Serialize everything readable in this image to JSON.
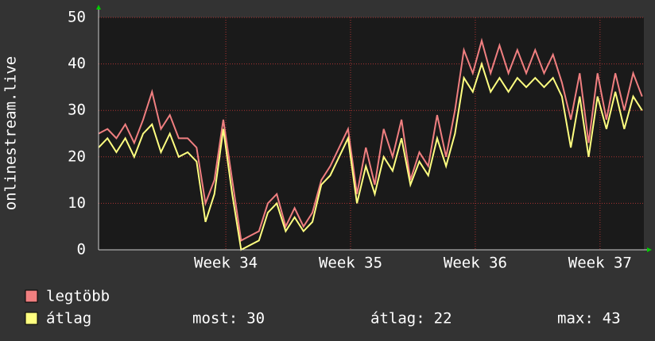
{
  "chart_data": {
    "type": "line",
    "y_label": "onlinestream.live",
    "x": [
      0,
      0.5,
      1,
      1.5,
      2,
      2.5,
      3,
      3.5,
      4,
      4.5,
      5,
      5.5,
      6,
      6.5,
      7,
      7.5,
      8,
      8.5,
      9,
      9.5,
      10,
      10.5,
      11,
      11.5,
      12,
      12.5,
      13,
      13.5,
      14,
      14.5,
      15,
      15.5,
      16,
      16.5,
      17,
      17.5,
      18,
      18.5,
      19,
      19.5,
      20,
      20.5,
      21,
      21.5,
      22,
      22.5,
      23,
      23.5,
      24,
      24.5,
      25,
      25.5,
      26,
      26.5,
      27,
      27.5,
      28,
      28.5,
      29,
      29.5,
      30,
      30.5
    ],
    "series": [
      {
        "name": "legtöbb",
        "color": "#f07f80",
        "values": [
          25,
          26,
          24,
          27,
          23,
          28,
          34,
          26,
          29,
          24,
          24,
          22,
          10,
          15,
          28,
          15,
          2,
          3,
          4,
          10,
          12,
          5,
          9,
          5,
          8,
          15,
          18,
          22,
          26,
          12,
          22,
          14,
          26,
          20,
          28,
          15,
          21,
          18,
          29,
          20,
          30,
          43,
          38,
          45,
          38,
          44,
          38,
          43,
          38,
          43,
          38,
          42,
          36,
          28,
          38,
          23,
          38,
          28,
          38,
          30,
          38,
          33
        ]
      },
      {
        "name": "átlag",
        "color": "#ffff80",
        "values": [
          22,
          24,
          21,
          24,
          20,
          25,
          27,
          21,
          25,
          20,
          21,
          19,
          6,
          12,
          26,
          12,
          0,
          1,
          2,
          8,
          10,
          4,
          7,
          4,
          6,
          14,
          16,
          20,
          24,
          10,
          18,
          12,
          20,
          17,
          24,
          14,
          19,
          16,
          24,
          18,
          25,
          37,
          34,
          40,
          34,
          37,
          34,
          37,
          35,
          37,
          35,
          37,
          33,
          22,
          33,
          20,
          33,
          26,
          34,
          26,
          33,
          30
        ]
      }
    ],
    "xlim": [
      0,
      30.6
    ],
    "xticks": [
      {
        "value": 7.14,
        "label": "Week 34"
      },
      {
        "value": 14.14,
        "label": "Week 35"
      },
      {
        "value": 21.14,
        "label": "Week 36"
      },
      {
        "value": 28.14,
        "label": "Week 37"
      }
    ],
    "ylim": [
      0,
      50
    ],
    "yticks": [
      0,
      10,
      20,
      30,
      40,
      50
    ],
    "grid": true,
    "stats": [
      {
        "label": "most:",
        "value": 30
      },
      {
        "label": "átlag:",
        "value": 22
      },
      {
        "label": "max:",
        "value": 43
      }
    ]
  }
}
